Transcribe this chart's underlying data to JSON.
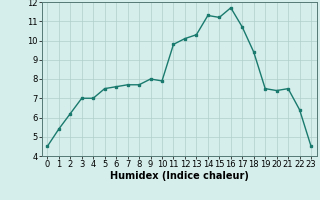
{
  "x": [
    0,
    1,
    2,
    3,
    4,
    5,
    6,
    7,
    8,
    9,
    10,
    11,
    12,
    13,
    14,
    15,
    16,
    17,
    18,
    19,
    20,
    21,
    22,
    23
  ],
  "y": [
    4.5,
    5.4,
    6.2,
    7.0,
    7.0,
    7.5,
    7.6,
    7.7,
    7.7,
    8.0,
    7.9,
    9.8,
    10.1,
    10.3,
    11.3,
    11.2,
    11.7,
    10.7,
    9.4,
    7.5,
    7.4,
    7.5,
    6.4,
    4.5
  ],
  "line_color": "#1a7a6e",
  "marker": "s",
  "marker_size": 2,
  "bg_color": "#d5eeeb",
  "grid_color": "#b0cfcc",
  "xlabel": "Humidex (Indice chaleur)",
  "xlim": [
    -0.5,
    23.5
  ],
  "ylim": [
    4,
    12
  ],
  "yticks": [
    4,
    5,
    6,
    7,
    8,
    9,
    10,
    11,
    12
  ],
  "xticks": [
    0,
    1,
    2,
    3,
    4,
    5,
    6,
    7,
    8,
    9,
    10,
    11,
    12,
    13,
    14,
    15,
    16,
    17,
    18,
    19,
    20,
    21,
    22,
    23
  ],
  "tick_labelsize": 6,
  "xlabel_fontsize": 7,
  "line_width": 1.0
}
